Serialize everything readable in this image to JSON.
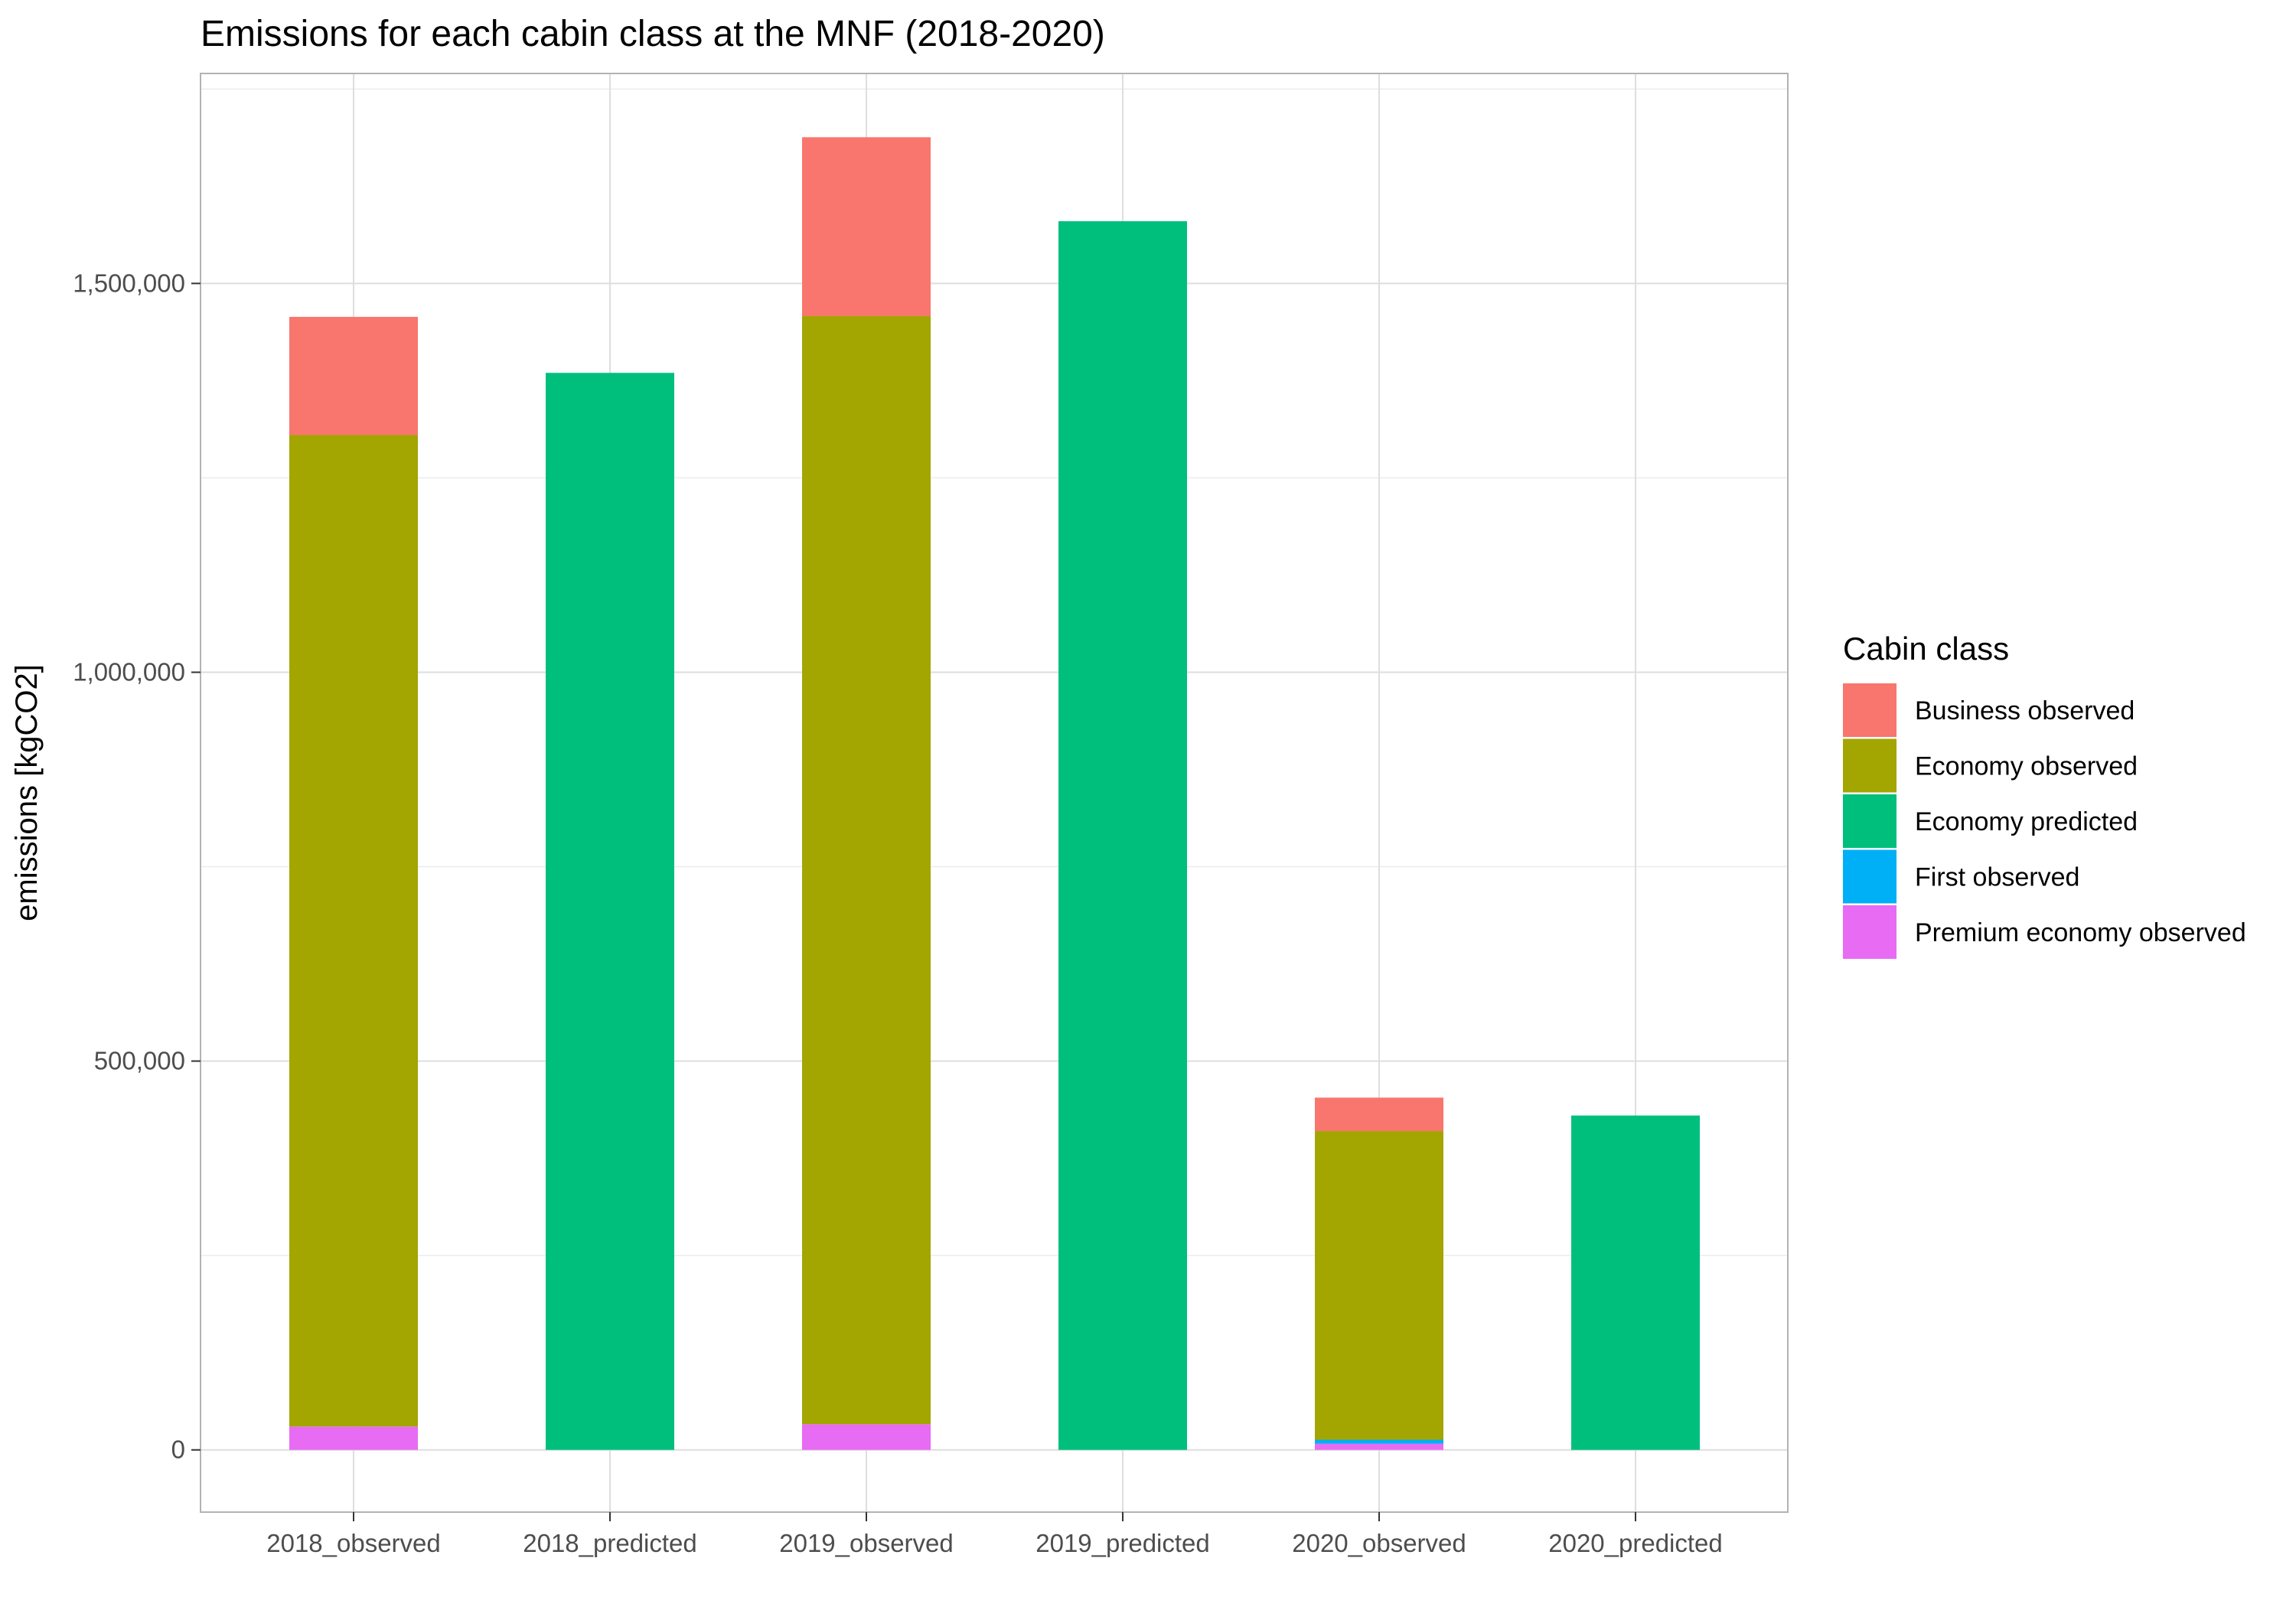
{
  "chart_data": {
    "type": "bar",
    "stacked": true,
    "title": "Emissions for each cabin class at the MNF (2018-2020)",
    "xlabel": "",
    "ylabel": "emissions [kgCO2]",
    "categories": [
      "2018_observed",
      "2018_predicted",
      "2019_observed",
      "2019_predicted",
      "2020_observed",
      "2020_predicted"
    ],
    "series": [
      {
        "name": "Premium economy observed",
        "color": "#E76BF3",
        "values": [
          30000,
          0,
          33000,
          0,
          8000,
          0
        ]
      },
      {
        "name": "First observed",
        "color": "#00B0F6",
        "values": [
          0,
          0,
          0,
          0,
          5000,
          0
        ]
      },
      {
        "name": "Economy observed",
        "color": "#A3A500",
        "values": [
          1275000,
          0,
          1425000,
          0,
          397000,
          0
        ]
      },
      {
        "name": "Economy predicted",
        "color": "#00BF7D",
        "values": [
          0,
          1385000,
          0,
          1580000,
          0,
          430000
        ]
      },
      {
        "name": "Business observed",
        "color": "#F8766D",
        "values": [
          152000,
          0,
          230000,
          0,
          43000,
          0
        ]
      }
    ],
    "ylim": [
      -80000,
      1770000
    ],
    "yticks": [
      0,
      500000,
      1000000,
      1500000
    ],
    "ytick_labels": [
      "0",
      "500,000",
      "1,000,000",
      "1,500,000"
    ],
    "grid": true,
    "legend": {
      "title": "Cabin class",
      "position": "right",
      "items": [
        {
          "label": "Business observed",
          "color": "#F8766D"
        },
        {
          "label": "Economy observed",
          "color": "#A3A500"
        },
        {
          "label": "Economy predicted",
          "color": "#00BF7D"
        },
        {
          "label": "First observed",
          "color": "#00B0F6"
        },
        {
          "label": "Premium economy observed",
          "color": "#E76BF3"
        }
      ]
    }
  }
}
